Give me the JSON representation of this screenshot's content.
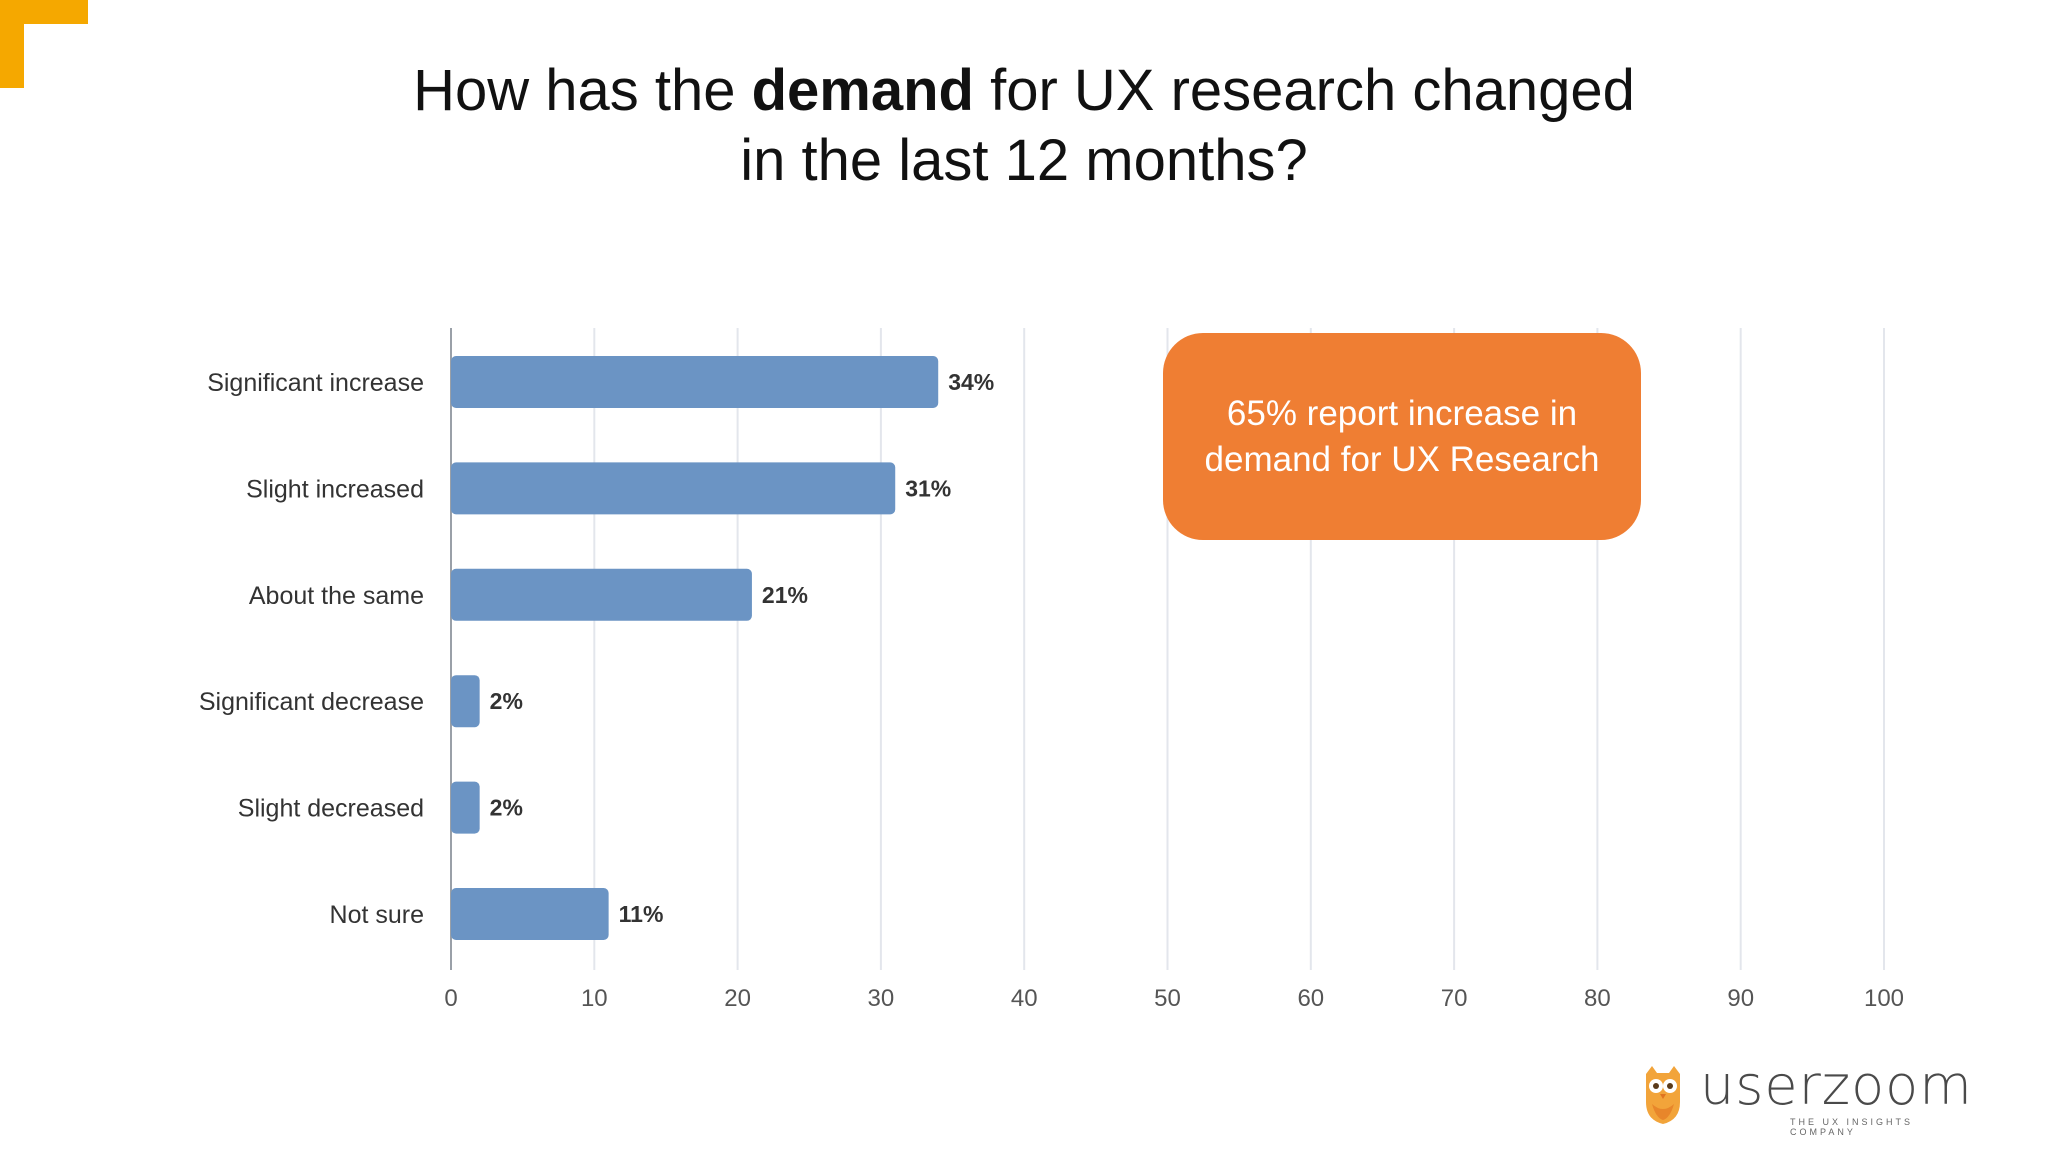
{
  "title": {
    "before": "How has the ",
    "bold": "demand",
    "after_line1": " for UX research changed",
    "line2": "in the last 12 months?"
  },
  "callout": {
    "line1": "65% report increase in",
    "line2": "demand for UX Research"
  },
  "logo": {
    "name": "userzoom",
    "tagline": "THE UX INSIGHTS COMPANY"
  },
  "colors": {
    "accent": "#F5A800",
    "bar": "#6B94C4",
    "callout": "#EF7E33",
    "grid": "#E3E6EC"
  },
  "chart_data": {
    "type": "bar",
    "orientation": "horizontal",
    "categories": [
      "Significant increase",
      "Slight increased",
      "About the same",
      "Significant decrease",
      "Slight decreased",
      "Not sure"
    ],
    "values": [
      34,
      31,
      21,
      2,
      2,
      11
    ],
    "value_labels": [
      "34%",
      "31%",
      "21%",
      "2%",
      "2%",
      "11%"
    ],
    "xlim": [
      0,
      100
    ],
    "xticks": [
      0,
      10,
      20,
      30,
      40,
      50,
      60,
      70,
      80,
      90,
      100
    ],
    "grid": true,
    "xlabel": "",
    "ylabel": ""
  }
}
